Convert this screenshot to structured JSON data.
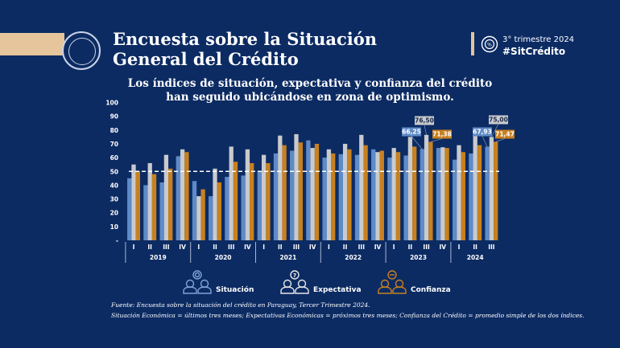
{
  "header": {
    "title_line1": "Encuesta sobre la Situación",
    "title_line2": "General del Crédito",
    "period": "3° trimestre 2024",
    "hashtag": "#SitCrédito",
    "logo": "banco-central-seal"
  },
  "subtitle_line1": "Los índices de situación, expectativa y confianza del crédito",
  "subtitle_line2": "han seguido ubicándose en zona de optimismo.",
  "colors": {
    "background": "#0c2b63",
    "situacion": "#5f8bc8",
    "expectativa": "#c9cacd",
    "confianza": "#c8811f",
    "accent": "#e6c49c"
  },
  "chart_data": {
    "type": "bar",
    "ylim": [
      0,
      100
    ],
    "yticks": [
      "-",
      "10",
      "20",
      "30",
      "40",
      "50",
      "60",
      "70",
      "80",
      "90",
      "100"
    ],
    "reference_line": 50,
    "years": [
      "2019",
      "2020",
      "2021",
      "2022",
      "2023",
      "2024"
    ],
    "categories": [
      "I",
      "II",
      "III",
      "IV",
      "I",
      "II",
      "III",
      "IV",
      "I",
      "II",
      "III",
      "IV",
      "I",
      "II",
      "III",
      "IV",
      "I",
      "II",
      "III",
      "IV",
      "I",
      "II",
      "III"
    ],
    "series": [
      {
        "name": "Situación",
        "values": [
          45,
          40,
          42,
          61,
          43,
          32,
          46,
          47,
          50,
          63,
          65,
          72.5,
          60,
          62.5,
          62,
          66,
          60,
          61.5,
          66.25,
          67,
          58.5,
          63,
          67.93
        ]
      },
      {
        "name": "Expectativa",
        "values": [
          55,
          56,
          62,
          66,
          32,
          52,
          68,
          66,
          62,
          76,
          77,
          67,
          66,
          70,
          76.5,
          64,
          67,
          75,
          76.5,
          67.5,
          69,
          75.5,
          75.0
        ]
      },
      {
        "name": "Confianza",
        "values": [
          50,
          48,
          52,
          64,
          37,
          42,
          57,
          56,
          56,
          69,
          71,
          70,
          63,
          66,
          69,
          65,
          64,
          68,
          71.38,
          67,
          64,
          69,
          71.47
        ]
      }
    ],
    "data_labels": [
      {
        "series": 0,
        "index": 18,
        "text": "66,25"
      },
      {
        "series": 1,
        "index": 18,
        "text": "76,50"
      },
      {
        "series": 2,
        "index": 18,
        "text": "71,38"
      },
      {
        "series": 0,
        "index": 22,
        "text": "67,93"
      },
      {
        "series": 1,
        "index": 22,
        "text": "75,00"
      },
      {
        "series": 2,
        "index": 22,
        "text": "71,47"
      }
    ],
    "legend": [
      {
        "label": "Situación",
        "icon": "people-target-icon"
      },
      {
        "label": "Expectativa",
        "icon": "people-question-icon"
      },
      {
        "label": "Confianza",
        "icon": "people-handshake-icon"
      }
    ]
  },
  "footnote1": "Fuente: Encuesta sobre la situación del crédito en Paraguay, Tercer Trimestre 2024.",
  "footnote2": "Situación Económica = últimos tres meses; Expectativas Económicas = próximos tres meses; Confianza del Crédito = promedio simple de los dos índices."
}
